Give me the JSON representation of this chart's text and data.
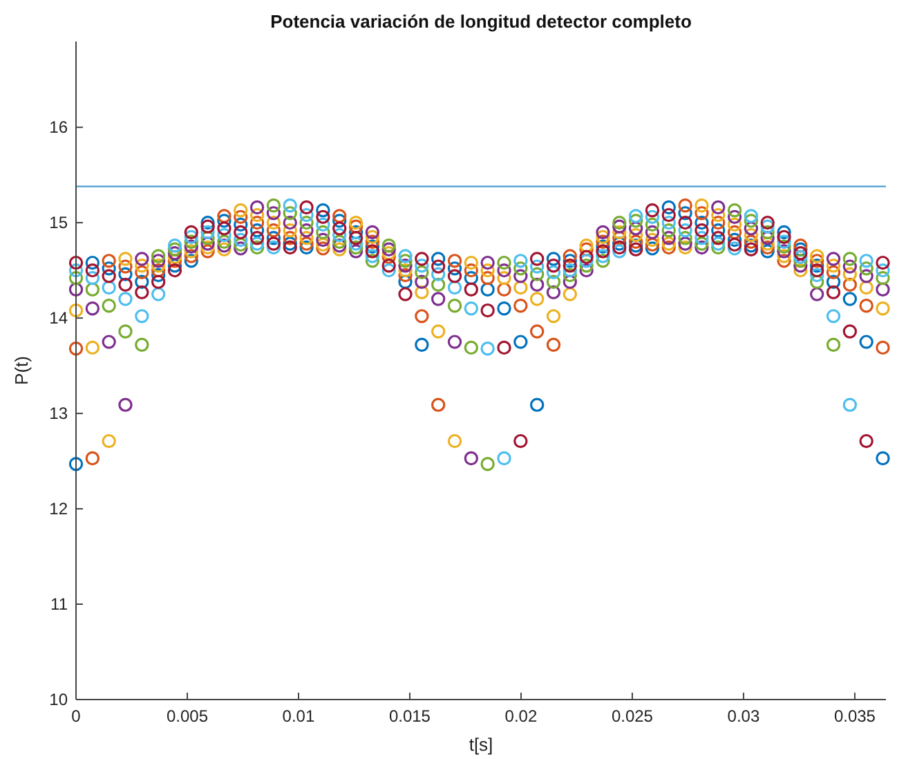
{
  "chart_data": {
    "type": "scatter",
    "title": "Potencia variación de longitud detector completo",
    "xlabel": "t[s]",
    "ylabel": "P(t)",
    "marker": "circle",
    "grid": false,
    "xlim": [
      0,
      0.0364
    ],
    "xticks": [
      0,
      0.005,
      0.01,
      0.015,
      0.02,
      0.025,
      0.03,
      0.035
    ],
    "ylim": [
      10,
      16.9
    ],
    "yticks": [
      10,
      11,
      12,
      13,
      14,
      15,
      16
    ],
    "x": [
      0,
      0.00074,
      0.00148,
      0.00222,
      0.00296,
      0.0037,
      0.00444,
      0.00518,
      0.00592,
      0.00666,
      0.0074,
      0.00814,
      0.00888,
      0.00962,
      0.01036,
      0.0111,
      0.01184,
      0.01258,
      0.01332,
      0.01406,
      0.0148,
      0.01554,
      0.01628,
      0.01702,
      0.01776,
      0.0185,
      0.01924,
      0.01998,
      0.02072,
      0.02146,
      0.0222,
      0.02294,
      0.02368,
      0.02442,
      0.02516,
      0.0259,
      0.02664,
      0.02738,
      0.02812,
      0.02886,
      0.0296,
      0.03034,
      0.03108,
      0.03182,
      0.03256,
      0.0333,
      0.03404,
      0.03478,
      0.03552,
      0.03626
    ],
    "ref_lines": [
      {
        "axis": "y",
        "value": 15.38,
        "color": "#5fa8d8"
      }
    ],
    "series": [
      {
        "color": "#0072bd",
        "values": [
          12.47,
          14.58,
          14.52,
          14.46,
          14.38,
          14.45,
          14.55,
          14.6,
          15.0,
          15.02,
          14.98,
          14.92,
          14.84,
          14.78,
          14.74,
          15.13,
          15.02,
          14.9,
          14.75,
          null,
          14.38,
          13.72,
          14.62,
          14.52,
          14.42,
          14.3,
          14.1,
          13.75,
          13.09,
          14.62,
          14.6,
          null,
          14.75,
          14.78,
          14.76,
          14.73,
          15.16,
          15.1,
          15.0,
          14.92,
          14.82,
          14.76,
          14.7,
          14.9,
          14.72,
          14.55,
          14.38,
          14.2,
          13.75,
          12.53
        ]
      },
      {
        "color": "#d95319",
        "values": [
          13.68,
          12.53,
          14.6,
          14.54,
          14.48,
          14.5,
          14.6,
          14.65,
          14.7,
          15.07,
          15.06,
          15.0,
          14.92,
          14.84,
          14.78,
          14.73,
          15.07,
          14.96,
          14.8,
          14.64,
          14.45,
          14.02,
          13.09,
          14.6,
          14.5,
          14.42,
          14.3,
          14.13,
          13.86,
          13.72,
          14.65,
          14.72,
          14.8,
          14.84,
          14.8,
          14.77,
          14.74,
          15.18,
          15.1,
          15.0,
          14.9,
          14.8,
          14.74,
          14.6,
          14.76,
          14.6,
          14.48,
          14.35,
          14.13,
          13.69
        ]
      },
      {
        "color": "#edb120",
        "values": [
          14.08,
          13.69,
          12.71,
          14.62,
          14.55,
          14.55,
          14.64,
          14.7,
          14.74,
          14.72,
          15.13,
          15.08,
          15.0,
          14.92,
          14.84,
          14.77,
          14.72,
          15.0,
          14.85,
          14.68,
          14.5,
          14.27,
          13.86,
          12.71,
          14.58,
          14.5,
          14.42,
          14.32,
          14.2,
          14.02,
          14.25,
          14.76,
          14.85,
          14.9,
          14.87,
          14.82,
          14.78,
          14.74,
          15.18,
          15.08,
          14.98,
          14.87,
          14.78,
          14.65,
          14.5,
          14.65,
          14.55,
          14.46,
          14.32,
          14.1
        ]
      },
      {
        "color": "#7e2f8e",
        "values": [
          14.3,
          14.1,
          13.75,
          13.09,
          14.62,
          14.6,
          14.68,
          14.75,
          14.78,
          14.76,
          14.73,
          15.16,
          15.1,
          15.0,
          14.92,
          14.82,
          14.76,
          14.7,
          14.9,
          14.72,
          14.55,
          14.38,
          14.2,
          13.75,
          12.53,
          14.58,
          14.5,
          14.44,
          14.35,
          14.27,
          14.38,
          14.5,
          14.9,
          14.96,
          14.94,
          14.9,
          14.84,
          14.78,
          14.74,
          15.16,
          15.06,
          14.94,
          14.84,
          14.7,
          14.55,
          14.25,
          14.62,
          14.54,
          14.44,
          14.3
        ]
      },
      {
        "color": "#77ac30",
        "values": [
          14.42,
          14.3,
          14.13,
          13.86,
          13.72,
          14.65,
          14.72,
          14.8,
          14.84,
          14.8,
          14.77,
          14.74,
          15.18,
          15.1,
          15.0,
          14.9,
          14.8,
          14.74,
          14.6,
          14.76,
          14.6,
          14.48,
          14.35,
          14.13,
          13.69,
          12.47,
          14.58,
          14.52,
          14.46,
          14.38,
          14.45,
          14.55,
          14.6,
          15.0,
          15.02,
          14.98,
          14.92,
          14.84,
          14.78,
          14.74,
          15.13,
          15.02,
          14.9,
          14.75,
          14.6,
          14.38,
          13.72,
          14.62,
          14.52,
          14.42
        ]
      },
      {
        "color": "#4dbeee",
        "values": [
          14.5,
          14.42,
          14.32,
          14.2,
          14.02,
          14.25,
          14.76,
          14.85,
          14.9,
          14.87,
          14.82,
          14.78,
          14.74,
          15.18,
          15.08,
          14.98,
          14.87,
          14.78,
          14.65,
          14.5,
          14.65,
          14.55,
          14.46,
          14.32,
          14.1,
          13.68,
          12.53,
          14.6,
          14.54,
          14.48,
          14.5,
          14.6,
          14.65,
          14.7,
          15.07,
          15.06,
          15.0,
          14.92,
          14.84,
          14.78,
          14.73,
          15.07,
          14.96,
          14.8,
          14.64,
          14.45,
          14.02,
          13.09,
          14.6,
          14.5
        ]
      },
      {
        "color": "#a2142f",
        "values": [
          14.58,
          14.5,
          14.44,
          14.35,
          14.27,
          14.38,
          14.5,
          14.9,
          14.96,
          14.94,
          14.9,
          14.84,
          14.78,
          14.74,
          15.16,
          15.06,
          14.94,
          14.84,
          14.7,
          14.55,
          14.25,
          14.62,
          14.54,
          14.44,
          14.3,
          14.08,
          13.69,
          12.71,
          14.62,
          14.55,
          14.55,
          14.64,
          14.7,
          14.74,
          14.72,
          15.13,
          15.08,
          15.0,
          14.92,
          14.84,
          14.77,
          14.72,
          15.0,
          14.85,
          14.68,
          14.5,
          14.27,
          13.86,
          12.71,
          14.58
        ]
      }
    ]
  }
}
